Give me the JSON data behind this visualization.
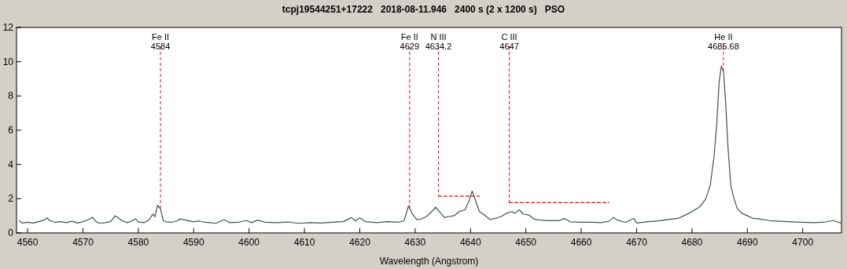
{
  "chart_data": {
    "type": "line",
    "title": "tcpj19544251+17222   2018-08-11.946   2400 s (2 x 1200 s)   PSO",
    "xlabel": "Wavelength (Angstrom)",
    "xlim": [
      4558,
      4707
    ],
    "xticks": [
      4560,
      4570,
      4580,
      4590,
      4600,
      4610,
      4620,
      4630,
      4640,
      4650,
      4660,
      4670,
      4680,
      4690,
      4700
    ],
    "ylim": [
      0,
      12
    ],
    "yticks": [
      0,
      2,
      4,
      6,
      8,
      10,
      12
    ],
    "grid": false,
    "marker": "none",
    "ref_lines": [
      {
        "axis": "x",
        "value": 4584,
        "label": "Fe II\n4584",
        "color": "#ff0000",
        "line_style": "dashed"
      },
      {
        "axis": "x",
        "value": 4629,
        "label": "Fe II\n4629",
        "color": "#ff0000",
        "line_style": "dashed"
      },
      {
        "axis": "x",
        "value": 4634.2,
        "label": "N III\n4634.2",
        "color": "#ff0000",
        "line_style": "dashed"
      },
      {
        "axis": "x",
        "value": 4647,
        "label": "C III\n4647",
        "color": "#ff0000",
        "line_style": "dashed"
      },
      {
        "axis": "x",
        "value": 4685.68,
        "label": "He II\n4685.68",
        "color": "#ff0000",
        "line_style": "dashed"
      }
    ],
    "series": [
      {
        "color": "#3f5252",
        "line_style": "solid",
        "x": [
          4558.5,
          4559,
          4560,
          4561,
          4562,
          4563,
          4563.5,
          4564,
          4565,
          4566,
          4567,
          4568,
          4569,
          4570,
          4571,
          4571.7,
          4572.3,
          4573,
          4574,
          4575,
          4575.8,
          4576.5,
          4577,
          4578,
          4579,
          4579.5,
          4580,
          4581,
          4582,
          4582.6,
          4583,
          4583.5,
          4584,
          4584.5,
          4585,
          4586,
          4587,
          4587.5,
          4588.5,
          4590,
          4591,
          4592,
          4593,
          4594,
          4595.5,
          4596.5,
          4598,
          4599.5,
          4600.5,
          4601.5,
          4603,
          4605,
          4607,
          4609,
          4611,
          4613,
          4615,
          4617,
          4618.5,
          4619.2,
          4620,
          4621,
          4623,
          4625,
          4627,
          4628,
          4628.8,
          4629.5,
          4630.3,
          4631,
          4632,
          4633,
          4633.7,
          4634.5,
          4635.3,
          4636,
          4637,
          4638,
          4639,
          4639.7,
          4640.3,
          4641,
          4641.6,
          4642.5,
          4643.5,
          4644.5,
          4645.5,
          4646.5,
          4647.5,
          4648,
          4648.8,
          4649.5,
          4650.5,
          4651.5,
          4652.5,
          4654,
          4656,
          4657,
          4658,
          4660,
          4662,
          4663.5,
          4665,
          4665.8,
          4666.5,
          4668,
          4669.5,
          4670,
          4672,
          4674,
          4676,
          4677.5,
          4678.5,
          4679.5,
          4680.5,
          4681.5,
          4682.5,
          4683.3,
          4684,
          4684.5,
          4684.9,
          4685.3,
          4685.7,
          4686.1,
          4686.5,
          4687,
          4687.5,
          4688.2,
          4689,
          4690,
          4691,
          4692,
          4694,
          4696,
          4698,
          4700,
          4702,
          4704,
          4705.5,
          4706.9
        ],
        "values": [
          0.72,
          0.58,
          0.62,
          0.58,
          0.66,
          0.75,
          0.88,
          0.72,
          0.62,
          0.66,
          0.6,
          0.68,
          0.58,
          0.66,
          0.78,
          0.92,
          0.68,
          0.56,
          0.6,
          0.66,
          1.0,
          0.85,
          0.72,
          0.6,
          0.72,
          0.82,
          0.65,
          0.6,
          0.78,
          1.1,
          0.95,
          1.62,
          1.4,
          0.72,
          0.65,
          0.62,
          0.7,
          0.82,
          0.75,
          0.65,
          0.7,
          0.62,
          0.6,
          0.56,
          0.78,
          0.6,
          0.62,
          0.72,
          0.6,
          0.75,
          0.62,
          0.6,
          0.64,
          0.56,
          0.6,
          0.58,
          0.62,
          0.66,
          0.9,
          0.7,
          0.88,
          0.66,
          0.6,
          0.66,
          0.62,
          0.72,
          1.58,
          1.1,
          0.78,
          0.8,
          0.95,
          1.25,
          1.5,
          1.2,
          0.9,
          0.95,
          1.0,
          1.25,
          1.35,
          1.85,
          2.45,
          1.8,
          1.25,
          1.05,
          0.78,
          0.85,
          0.95,
          1.15,
          1.25,
          1.15,
          1.35,
          1.1,
          1.05,
          0.8,
          0.75,
          0.72,
          0.72,
          0.84,
          0.65,
          0.62,
          0.62,
          0.6,
          0.68,
          0.9,
          0.75,
          0.62,
          0.85,
          0.58,
          0.66,
          0.7,
          0.8,
          0.85,
          1.0,
          1.15,
          1.35,
          1.55,
          2.0,
          2.8,
          4.5,
          6.5,
          8.8,
          9.75,
          9.4,
          7.5,
          5.0,
          2.8,
          2.1,
          1.4,
          1.15,
          1.0,
          0.85,
          0.82,
          0.72,
          0.68,
          0.65,
          0.62,
          0.6,
          0.64,
          0.72,
          0.58
        ]
      },
      {
        "color": "#ff0000",
        "line_style": "dashed",
        "x": [
          4634.2,
          4641.6
        ],
        "values": [
          2.15,
          2.15
        ]
      },
      {
        "color": "#ff0000",
        "line_style": "dashed",
        "x": [
          4647,
          4665
        ],
        "values": [
          1.77,
          1.77
        ]
      }
    ]
  }
}
